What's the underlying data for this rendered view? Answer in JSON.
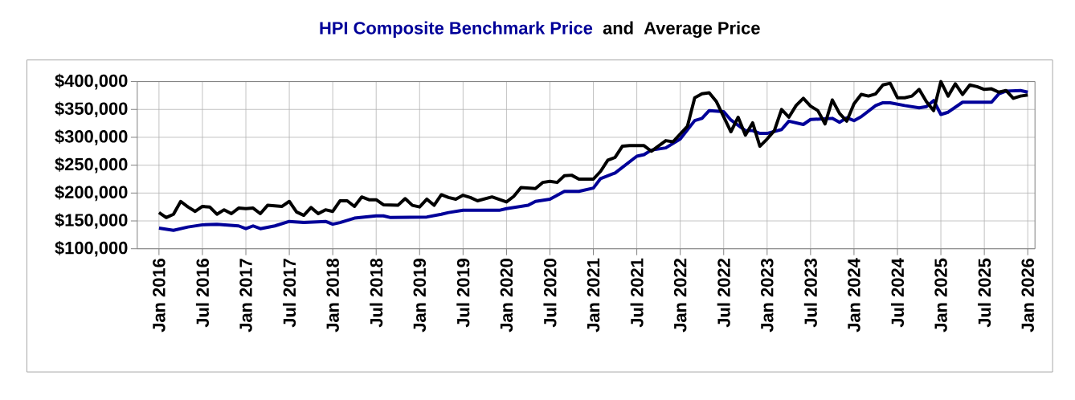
{
  "chart_data": {
    "type": "line",
    "legend": "top",
    "grid": true,
    "annotations": [
      "and"
    ],
    "xlim": [
      "2015-10",
      "2026-02"
    ],
    "ylim": [
      100000,
      400000
    ],
    "yticks": [
      {
        "value": 100000,
        "label": "$100,000"
      },
      {
        "value": 150000,
        "label": "$150,000"
      },
      {
        "value": 200000,
        "label": "$200,000"
      },
      {
        "value": 250000,
        "label": "$250,000"
      },
      {
        "value": 300000,
        "label": "$300,000"
      },
      {
        "value": 350000,
        "label": "$350,000"
      },
      {
        "value": 400000,
        "label": "$400,000"
      }
    ],
    "xticks": [
      {
        "value": "2016-01",
        "label": "Jan 2016"
      },
      {
        "value": "2016-07",
        "label": "Jul 2016"
      },
      {
        "value": "2017-01",
        "label": "Jan 2017"
      },
      {
        "value": "2017-07",
        "label": "Jul 2017"
      },
      {
        "value": "2018-01",
        "label": "Jan 2018"
      },
      {
        "value": "2018-07",
        "label": "Jul 2018"
      },
      {
        "value": "2019-01",
        "label": "Jan 2019"
      },
      {
        "value": "2019-07",
        "label": "Jul 2019"
      },
      {
        "value": "2020-01",
        "label": "Jan 2020"
      },
      {
        "value": "2020-07",
        "label": "Jul 2020"
      },
      {
        "value": "2021-01",
        "label": "Jan 2021"
      },
      {
        "value": "2021-07",
        "label": "Jul 2021"
      },
      {
        "value": "2022-01",
        "label": "Jan 2022"
      },
      {
        "value": "2022-07",
        "label": "Jul 2022"
      },
      {
        "value": "2023-01",
        "label": "Jan 2023"
      },
      {
        "value": "2023-07",
        "label": "Jul 2023"
      },
      {
        "value": "2024-01",
        "label": "Jan 2024"
      },
      {
        "value": "2024-07",
        "label": "Jul 2024"
      },
      {
        "value": "2025-01",
        "label": "Jan 2025"
      },
      {
        "value": "2025-07",
        "label": "Jul 2025"
      },
      {
        "value": "2026-01",
        "label": "Jan 2026"
      }
    ],
    "series": [
      {
        "name": "HPI Composite Benchmark Price",
        "color": "#000099",
        "x": [
          "2016-01",
          "2016-03",
          "2016-05",
          "2016-07",
          "2016-09",
          "2016-12",
          "2017-01",
          "2017-02",
          "2017-03",
          "2017-05",
          "2017-07",
          "2017-09",
          "2017-12",
          "2018-01",
          "2018-02",
          "2018-04",
          "2018-07",
          "2018-08",
          "2018-09",
          "2019-02",
          "2019-04",
          "2019-05",
          "2019-07",
          "2019-09",
          "2019-12",
          "2020-01",
          "2020-04",
          "2020-05",
          "2020-07",
          "2020-09",
          "2020-11",
          "2021-01",
          "2021-02",
          "2021-04",
          "2021-07",
          "2021-08",
          "2021-09",
          "2021-11",
          "2022-01",
          "2022-03",
          "2022-04",
          "2022-05",
          "2022-07",
          "2022-08",
          "2022-10",
          "2022-11",
          "2022-12",
          "2023-01",
          "2023-03",
          "2023-04",
          "2023-06",
          "2023-07",
          "2023-10",
          "2023-11",
          "2023-12",
          "2024-01",
          "2024-02",
          "2024-04",
          "2024-05",
          "2024-06",
          "2024-08",
          "2024-10",
          "2024-11",
          "2024-12",
          "2025-01",
          "2025-02",
          "2025-04",
          "2025-06",
          "2025-08",
          "2025-09",
          "2025-10",
          "2025-12",
          "2026-01"
        ],
        "values": [
          137000,
          133000,
          139000,
          143000,
          144000,
          141000,
          136000,
          141000,
          136000,
          141000,
          149000,
          147000,
          149000,
          144000,
          147000,
          155000,
          159000,
          159000,
          156000,
          157000,
          162000,
          165000,
          169000,
          169000,
          169000,
          172000,
          178000,
          185000,
          189000,
          203000,
          203000,
          209000,
          226000,
          236000,
          266000,
          269000,
          277000,
          281000,
          297000,
          330000,
          334000,
          348000,
          346000,
          331000,
          312000,
          312000,
          307000,
          307000,
          314000,
          329000,
          323000,
          332000,
          334000,
          327000,
          335000,
          330000,
          337000,
          357000,
          362000,
          362000,
          357000,
          353000,
          355000,
          366000,
          341000,
          345000,
          363000,
          363000,
          363000,
          378000,
          383000,
          384000,
          381000
        ]
      },
      {
        "name": "Average Price",
        "color": "#000000",
        "x": [
          "2016-01",
          "2016-02",
          "2016-03",
          "2016-04",
          "2016-05",
          "2016-06",
          "2016-07",
          "2016-08",
          "2016-09",
          "2016-10",
          "2016-11",
          "2016-12",
          "2017-01",
          "2017-02",
          "2017-03",
          "2017-04",
          "2017-06",
          "2017-07",
          "2017-08",
          "2017-09",
          "2017-10",
          "2017-11",
          "2017-12",
          "2018-01",
          "2018-02",
          "2018-03",
          "2018-04",
          "2018-05",
          "2018-06",
          "2018-07",
          "2018-08",
          "2018-10",
          "2018-11",
          "2018-12",
          "2019-01",
          "2019-02",
          "2019-03",
          "2019-04",
          "2019-05",
          "2019-06",
          "2019-07",
          "2019-08",
          "2019-09",
          "2019-11",
          "2020-01",
          "2020-02",
          "2020-03",
          "2020-05",
          "2020-06",
          "2020-07",
          "2020-08",
          "2020-09",
          "2020-10",
          "2020-11",
          "2021-01",
          "2021-02",
          "2021-03",
          "2021-04",
          "2021-05",
          "2021-06",
          "2021-08",
          "2021-09",
          "2021-11",
          "2021-12",
          "2022-02",
          "2022-03",
          "2022-04",
          "2022-05",
          "2022-06",
          "2022-08",
          "2022-09",
          "2022-10",
          "2022-11",
          "2022-12",
          "2023-01",
          "2023-02",
          "2023-03",
          "2023-04",
          "2023-05",
          "2023-06",
          "2023-07",
          "2023-08",
          "2023-09",
          "2023-10",
          "2023-11",
          "2023-12",
          "2024-01",
          "2024-02",
          "2024-03",
          "2024-04",
          "2024-05",
          "2024-06",
          "2024-07",
          "2024-08",
          "2024-09",
          "2024-10",
          "2024-11",
          "2024-12",
          "2025-01",
          "2025-02",
          "2025-03",
          "2025-04",
          "2025-05",
          "2025-06",
          "2025-07",
          "2025-08",
          "2025-09",
          "2025-10",
          "2025-11",
          "2025-12",
          "2026-01"
        ],
        "values": [
          165000,
          156000,
          162000,
          185000,
          175000,
          167000,
          176000,
          175000,
          162000,
          170000,
          163000,
          173000,
          172000,
          173000,
          163000,
          178000,
          176000,
          185000,
          166000,
          160000,
          174000,
          163000,
          170000,
          167000,
          186000,
          186000,
          176000,
          193000,
          188000,
          188000,
          179000,
          178000,
          190000,
          178000,
          175000,
          189000,
          178000,
          197000,
          192000,
          189000,
          196000,
          192000,
          186000,
          193000,
          184000,
          194000,
          210000,
          208000,
          219000,
          221000,
          219000,
          231000,
          232000,
          225000,
          225000,
          239000,
          259000,
          264000,
          284000,
          285000,
          285000,
          275000,
          294000,
          292000,
          320000,
          371000,
          378000,
          380000,
          364000,
          310000,
          336000,
          304000,
          326000,
          284000,
          297000,
          312000,
          350000,
          336000,
          357000,
          370000,
          356000,
          348000,
          324000,
          367000,
          343000,
          329000,
          360000,
          377000,
          374000,
          378000,
          394000,
          397000,
          371000,
          371000,
          374000,
          386000,
          364000,
          348000,
          400000,
          374000,
          396000,
          377000,
          394000,
          391000,
          386000,
          387000,
          381000,
          384000,
          370000,
          374000,
          376000
        ]
      }
    ]
  }
}
